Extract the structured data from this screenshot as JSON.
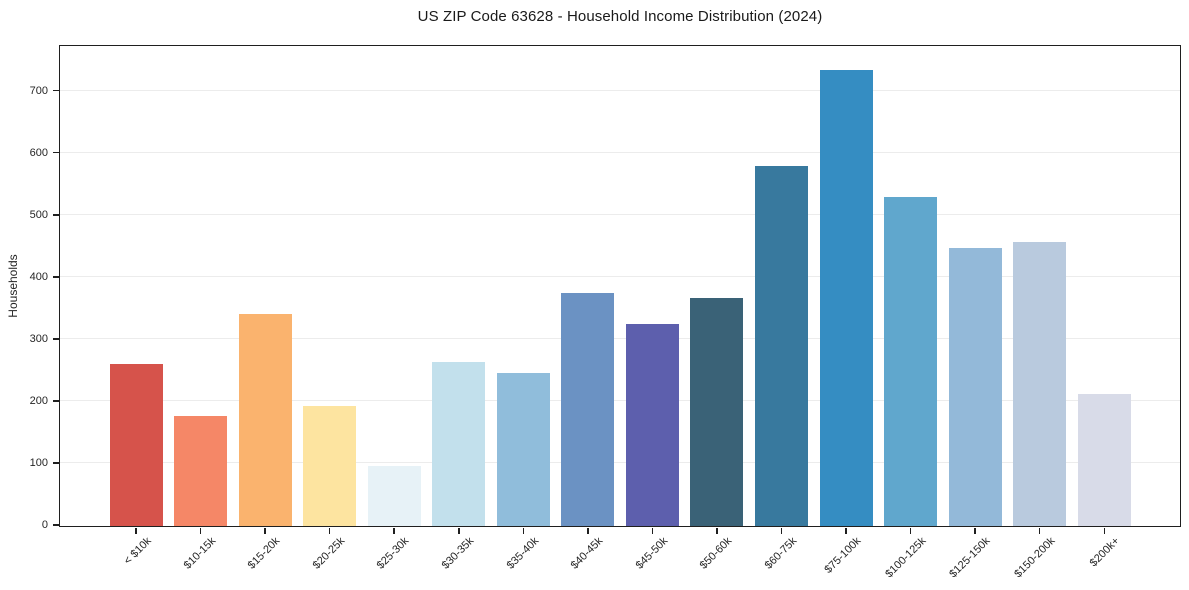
{
  "chart_data": {
    "type": "bar",
    "title": "US ZIP Code 63628 - Household Income Distribution (2024)",
    "xlabel": "",
    "ylabel": "Households",
    "categories": [
      "< $10k",
      "$10-15k",
      "$15-20k",
      "$20-25k",
      "$25-30k",
      "$30-35k",
      "$35-40k",
      "$40-45k",
      "$45-50k",
      "$50-60k",
      "$60-75k",
      "$75-100k",
      "$100-125k",
      "$125-150k",
      "$150-200k",
      "$200k+"
    ],
    "values": [
      261,
      177,
      342,
      194,
      96,
      265,
      246,
      376,
      326,
      367,
      580,
      735,
      530,
      448,
      457,
      213
    ],
    "bar_colors": [
      "#d6534b",
      "#f58767",
      "#fab36e",
      "#fde4a0",
      "#e7f2f7",
      "#c2e0ec",
      "#90bddb",
      "#6b92c3",
      "#5d5fad",
      "#3a6277",
      "#38799e",
      "#358dc2",
      "#60a7cd",
      "#93b9d9",
      "#b9cade",
      "#d8dbe8"
    ],
    "yticks": [
      0,
      100,
      200,
      300,
      400,
      500,
      600,
      700
    ],
    "ylim": [
      0,
      772
    ],
    "grid": "horizontal",
    "grid_color": "#ececec",
    "axis_color": "#1f1f1f",
    "tick_label_color": "#262626",
    "background": "#ffffff",
    "legend": "none",
    "x_tick_rotation_deg": 45
  }
}
